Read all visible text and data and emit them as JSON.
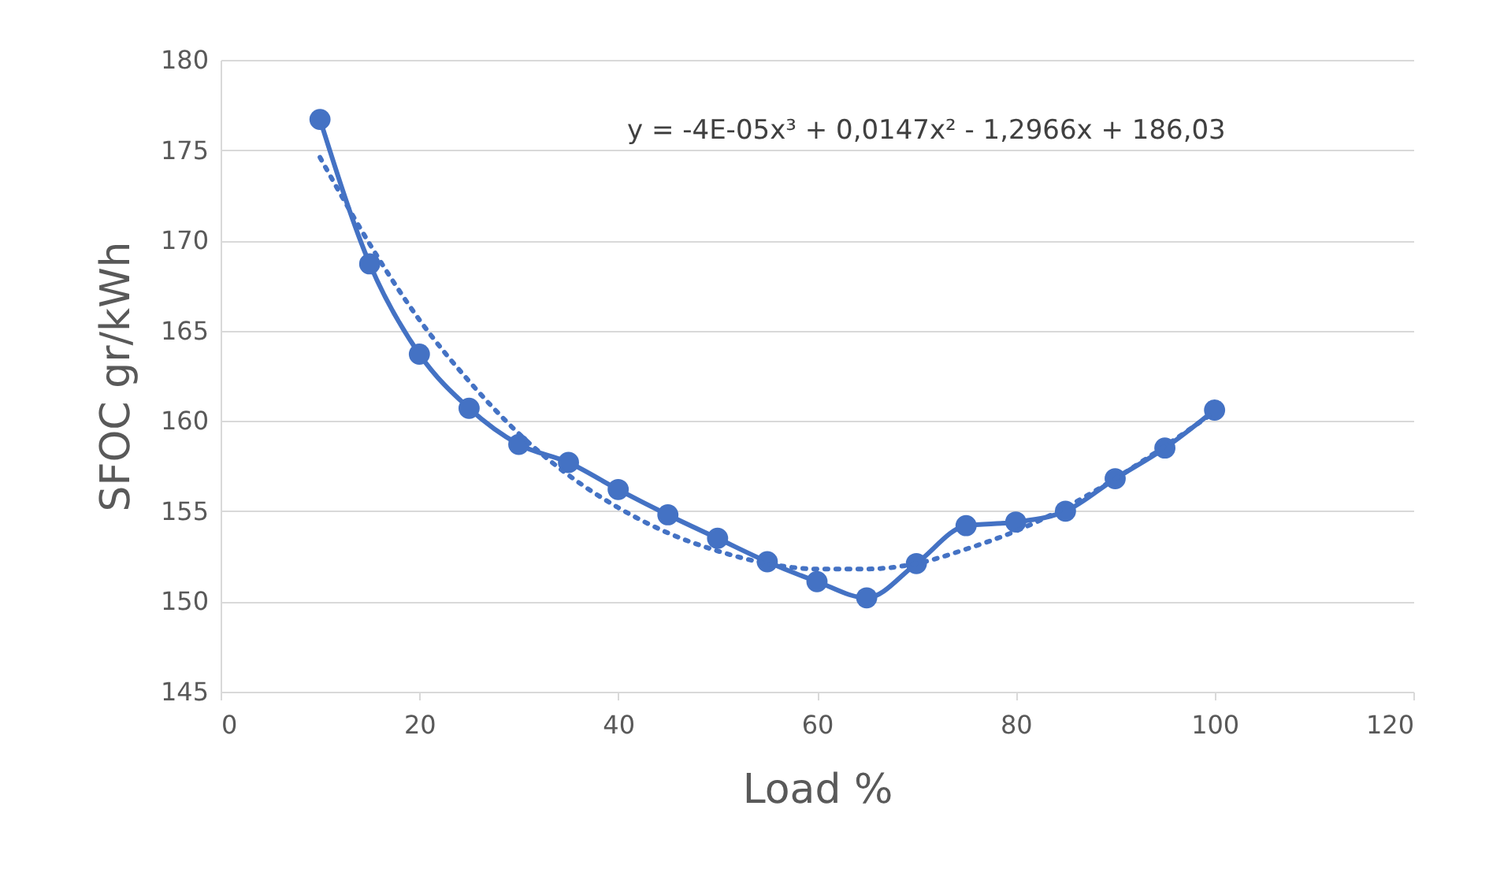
{
  "chart_data": {
    "type": "line",
    "xlabel": "Load %",
    "ylabel": "SFOC gr/kWh",
    "xlim": [
      0,
      120
    ],
    "xticks": [
      0,
      20,
      40,
      60,
      80,
      100,
      120
    ],
    "ylim": [
      145,
      180
    ],
    "yticks": [
      145,
      150,
      155,
      160,
      165,
      170,
      175,
      180
    ],
    "grid": "y",
    "annotations": [
      "y = -4E-05x³ + 0,0147x² - 1,2966x + 186,03"
    ],
    "series": [
      {
        "color": "#4472c4",
        "marker": "circle",
        "line_style": "solid",
        "x": [
          10,
          15,
          20,
          25,
          30,
          35,
          40,
          45,
          50,
          55,
          60,
          65,
          70,
          75,
          80,
          85,
          90,
          95,
          100
        ],
        "values": [
          176.7,
          168.7,
          163.7,
          160.7,
          158.7,
          157.7,
          156.2,
          154.8,
          153.5,
          152.2,
          151.1,
          150.2,
          152.1,
          154.2,
          154.4,
          155.0,
          156.8,
          158.5,
          160.6
        ]
      },
      {
        "color": "#4472c4",
        "marker": "none",
        "line_style": "dotted",
        "x": [
          10,
          15,
          20,
          25,
          30,
          35,
          40,
          45,
          50,
          55,
          60,
          65,
          70,
          75,
          80,
          85,
          90,
          95,
          100
        ],
        "values": [
          174.6,
          169.8,
          165.6,
          162.2,
          159.3,
          157.0,
          155.2,
          153.8,
          152.8,
          152.1,
          151.8,
          151.8,
          152.1,
          152.9,
          153.9,
          155.2,
          156.8,
          158.6,
          160.5
        ]
      }
    ]
  }
}
